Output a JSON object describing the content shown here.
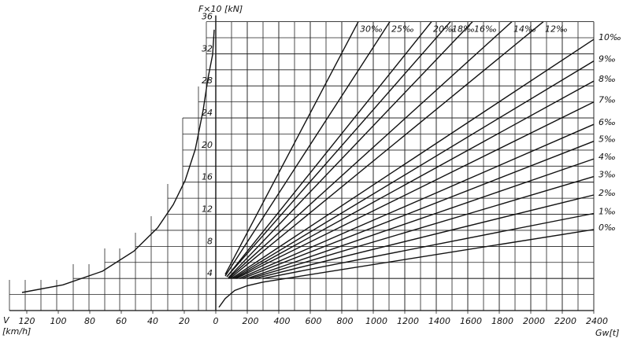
{
  "chart_data": [
    {
      "type": "line",
      "x_label": [
        "V",
        "[km/h]"
      ],
      "xlim": [
        130,
        0
      ],
      "xticks": [
        120,
        100,
        80,
        60,
        40,
        20,
        0
      ],
      "ylim": [
        0,
        36
      ],
      "series": [
        {
          "color": "#111111",
          "x": [
            123,
            97,
            72,
            52,
            37,
            27,
            19.5,
            13,
            8,
            5,
            2,
            1
          ],
          "values": [
            2.25,
            3.2,
            4.9,
            7.4,
            10.3,
            13.2,
            16.2,
            20.1,
            25,
            28.9,
            31.9,
            35
          ]
        }
      ]
    },
    {
      "type": "line",
      "y_label": "F×10 [kN]",
      "x_label": "Gw[t]",
      "xlim": [
        0,
        2400
      ],
      "xticks": [
        200,
        400,
        600,
        800,
        1000,
        1200,
        1400,
        1600,
        1800,
        2000,
        2200,
        2400
      ],
      "ylim": [
        0,
        36
      ],
      "yticks": [
        4,
        8,
        12,
        16,
        20,
        24,
        28,
        32,
        36
      ],
      "color": "#111111",
      "series": [
        {
          "x": [
            20,
            60,
            120,
            200,
            300
          ],
          "values": [
            0.4,
            1.5,
            2.5,
            3.1,
            3.55
          ]
        },
        {
          "name": "0‰",
          "x": [
            300,
            2400
          ],
          "values": [
            3.55,
            10.1
          ]
        },
        {
          "name": "1‰",
          "x": [
            300,
            2400
          ],
          "values": [
            4,
            12.1
          ]
        },
        {
          "name": "2‰",
          "x": [
            250,
            2400
          ],
          "values": [
            4,
            14.4
          ]
        },
        {
          "name": "3‰",
          "x": [
            220,
            2400
          ],
          "values": [
            4,
            16.7
          ]
        },
        {
          "name": "4‰",
          "x": [
            200,
            2400
          ],
          "values": [
            4,
            18.9
          ]
        },
        {
          "name": "5‰",
          "x": [
            170,
            2400
          ],
          "values": [
            4,
            21.1
          ]
        },
        {
          "name": "6‰",
          "x": [
            150,
            2400
          ],
          "values": [
            4,
            23.2
          ]
        },
        {
          "name": "7‰",
          "x": [
            130,
            2400
          ],
          "values": [
            4,
            26
          ]
        },
        {
          "name": "8‰",
          "x": [
            120,
            2400
          ],
          "values": [
            4,
            28.6
          ]
        },
        {
          "name": "9‰",
          "x": [
            110,
            2400
          ],
          "values": [
            4,
            31.1
          ]
        },
        {
          "name": "10‰",
          "x": [
            100,
            2400
          ],
          "values": [
            4,
            33.8
          ]
        },
        {
          "name": "12‰",
          "x": [
            90,
            2080
          ],
          "values": [
            4,
            36
          ]
        },
        {
          "name": "14‰",
          "x": [
            80,
            1880
          ],
          "values": [
            4,
            36
          ]
        },
        {
          "name": "16‰",
          "x": [
            80,
            1630
          ],
          "values": [
            4.1,
            36
          ]
        },
        {
          "name": "18‰",
          "x": [
            70,
            1490
          ],
          "values": [
            4.2,
            36
          ]
        },
        {
          "name": "20‰",
          "x": [
            70,
            1370
          ],
          "values": [
            4.2,
            36
          ]
        },
        {
          "name": "25‰",
          "x": [
            60,
            1105
          ],
          "values": [
            4.3,
            36
          ]
        },
        {
          "name": "30‰",
          "x": [
            60,
            905
          ],
          "values": [
            4.5,
            36
          ]
        }
      ]
    }
  ]
}
